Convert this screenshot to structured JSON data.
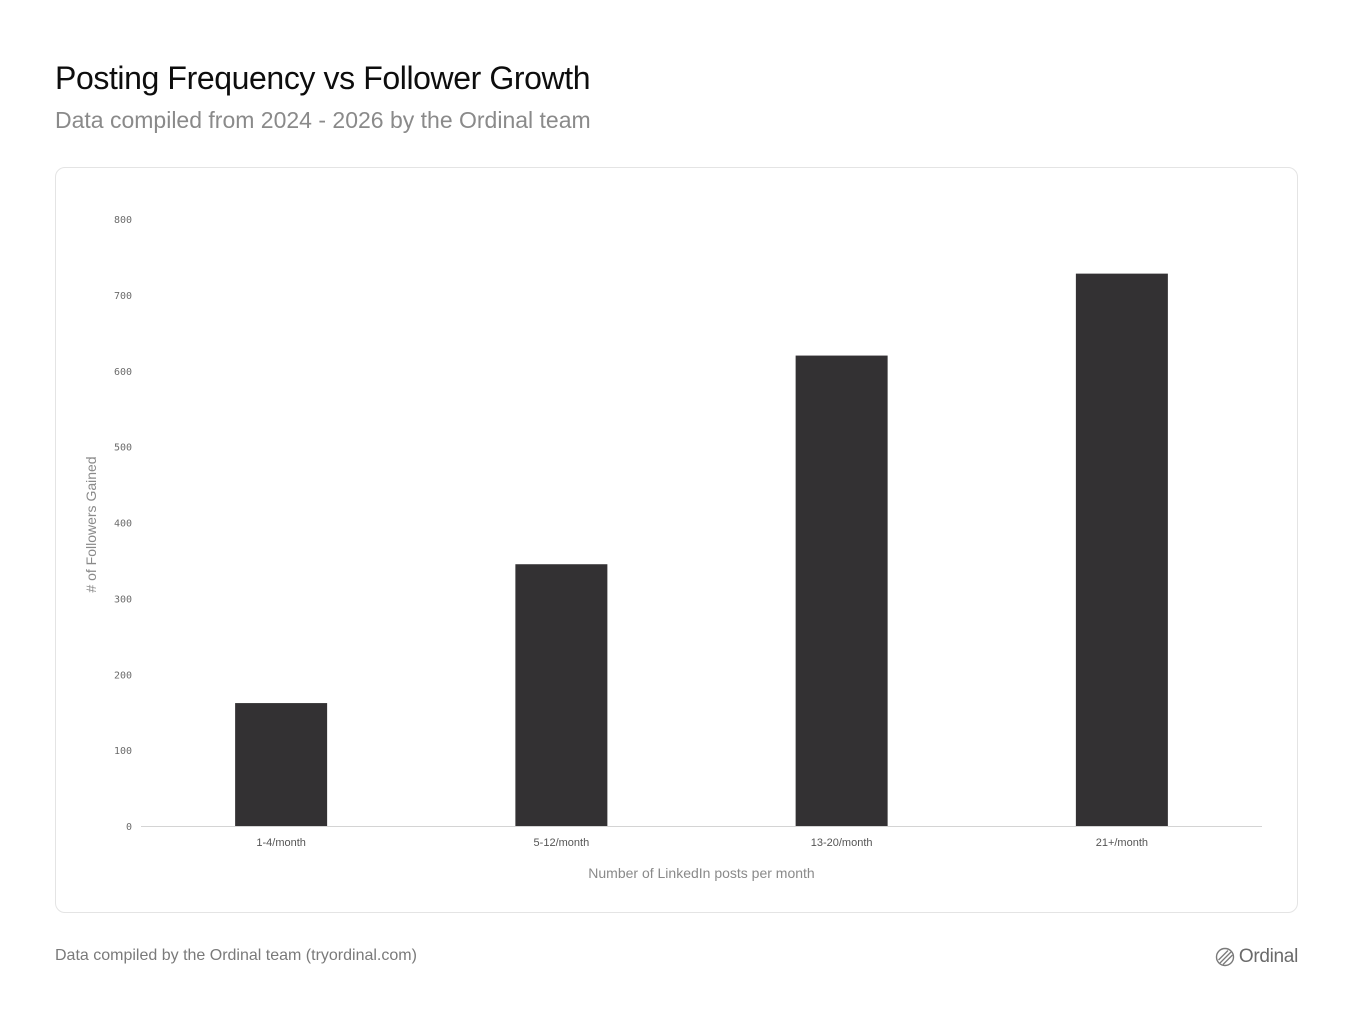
{
  "title": "Posting Frequency vs Follower Growth",
  "subtitle": "Data compiled from 2024 - 2026 by the Ordinal team",
  "footer": {
    "note": "Data compiled by the Ordinal team (tryordinal.com)",
    "brand_name": "Ordinal",
    "brand_icon": "ordinal-logo-icon"
  },
  "colors": {
    "bar": "#333133",
    "axis_line": "#d4d4d4",
    "card_border": "#e4e4e4"
  },
  "chart_data": {
    "type": "bar",
    "categories": [
      "1-4/month",
      "5-12/month",
      "13-20/month",
      "21+/month"
    ],
    "values": [
      162,
      345,
      620,
      728
    ],
    "title": "Posting Frequency vs Follower Growth",
    "subtitle": "Data compiled from 2024 - 2026 by the Ordinal team",
    "xlabel": "Number of LinkedIn posts per month",
    "ylabel": "# of Followers Gained",
    "ylim": [
      0,
      800
    ],
    "yticks": [
      0,
      100,
      200,
      300,
      400,
      500,
      600,
      700,
      800
    ],
    "grid": false,
    "legend": "none"
  }
}
